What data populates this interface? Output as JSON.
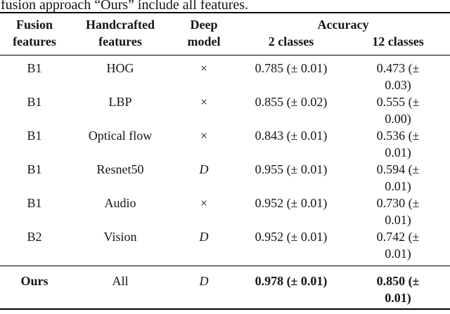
{
  "caption": "fusion approach “Ours” include all features.",
  "table": {
    "header": {
      "fusion_features": "Fusion\nfeatures",
      "handcrafted_features": "Handcrafted\nfeatures",
      "deep_model": "Deep\nmodel",
      "accuracy": "Accuracy",
      "classes2": "2 classes",
      "classes12": "12 classes"
    },
    "rows": [
      {
        "fusion": "B1",
        "handcrafted": "HOG",
        "deep": "×",
        "acc2": "0.785 (± 0.01)",
        "acc12": "0.473 (±\n0.03)"
      },
      {
        "fusion": "B1",
        "handcrafted": "LBP",
        "deep": "×",
        "acc2": "0.855 (± 0.02)",
        "acc12": "0.555 (±\n0.00)"
      },
      {
        "fusion": "B1",
        "handcrafted": "Optical flow",
        "deep": "×",
        "acc2": "0.843 (± 0.01)",
        "acc12": "0.536 (±\n0.01)"
      },
      {
        "fusion": "B1",
        "handcrafted": "Resnet50",
        "deep": "D",
        "acc2": "0.955 (± 0.01)",
        "acc12": "0.594 (±\n0.01)"
      },
      {
        "fusion": "B1",
        "handcrafted": "Audio",
        "deep": "×",
        "acc2": "0.952 (± 0.01)",
        "acc12": "0.730 (±\n0.01)"
      },
      {
        "fusion": "B2",
        "handcrafted": "Vision",
        "deep": "D",
        "acc2": "0.952 (± 0.01)",
        "acc12": "0.742 (±\n0.01)"
      },
      {
        "fusion": "Ours",
        "handcrafted": "All",
        "deep": "D",
        "acc2": "0.978 (± 0.01)",
        "acc12": "0.850 (±\n0.01)"
      }
    ]
  },
  "colors": {
    "text": "#141414",
    "rule": "#000000",
    "background": "#ffffff"
  }
}
